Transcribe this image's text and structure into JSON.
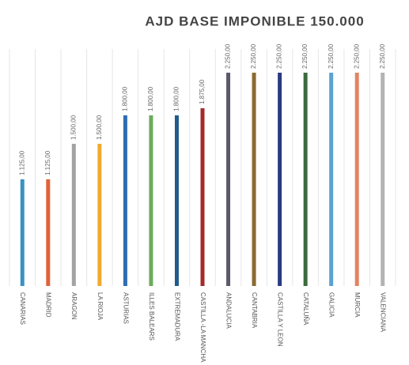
{
  "chart_data": {
    "type": "bar",
    "title": "AJD BASE IMPONIBLE 150.000",
    "categories": [
      "CANARIAS",
      "MADRID",
      "ARAGON",
      "LA RIOJA",
      "ASTURIAS",
      "ILLES BALEARS",
      "EXTREMADURA",
      "CASTILLA -LA MANCHA",
      "ANDALUCIA",
      "CANTABRIA",
      "CASTILLA Y LEON",
      "CATALUÑA",
      "GALICIA",
      "MURCIA",
      "VALENCIANA"
    ],
    "values": [
      1125,
      1125,
      1500,
      1500,
      1800,
      1800,
      1800,
      1875,
      2250,
      2250,
      2250,
      2250,
      2250,
      2250,
      2250
    ],
    "value_labels": [
      "1.125,00",
      "1.125,00",
      "1.500,00",
      "1.500,00",
      "1.800,00",
      "1.800,00",
      "1.800,00",
      "1.875,00",
      "2.250,00",
      "2.250,00",
      "2.250,00",
      "2.250,00",
      "2.250,00",
      "2.250,00",
      "2.250,00"
    ],
    "colors": [
      "#3a92c2",
      "#e0623a",
      "#a3a3a3",
      "#f0aa2e",
      "#2f6db4",
      "#6cab5c",
      "#1f5b8c",
      "#a32b2b",
      "#5a5a6a",
      "#8c6a30",
      "#2b3b82",
      "#3b6b3d",
      "#5aa2d2",
      "#e38362",
      "#b3b3b3"
    ],
    "ylim": [
      0,
      2500
    ]
  }
}
